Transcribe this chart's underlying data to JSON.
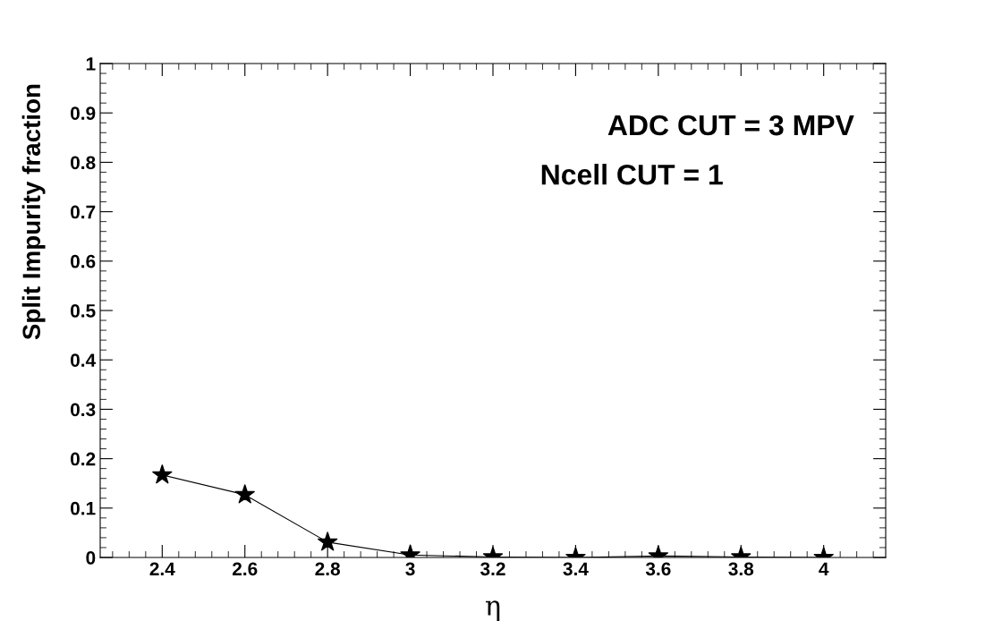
{
  "chart_data": {
    "type": "line",
    "xlabel": "η",
    "ylabel": "Split Impurity fraction",
    "x": [
      2.4,
      2.6,
      2.8,
      3.0,
      3.2,
      3.4,
      3.6,
      3.8,
      4.0
    ],
    "series": [
      {
        "color": "#000000",
        "values": [
          0.167,
          0.127,
          0.031,
          0.005,
          0.001,
          0.0,
          0.003,
          0.001,
          0.0
        ]
      }
    ],
    "xlim": [
      2.25,
      4.15
    ],
    "xticks": [
      2.4,
      2.6,
      2.8,
      {
        "value": 3.0,
        "label": "3"
      },
      3.2,
      3.4,
      3.6,
      3.8,
      {
        "value": 4.0,
        "label": "4"
      }
    ],
    "ylim": [
      0,
      1
    ],
    "yticks": [
      0,
      0.1,
      0.2,
      0.3,
      0.4,
      0.5,
      0.6,
      0.7,
      0.8,
      0.9,
      1
    ],
    "annotations": [
      "ADC CUT = 3 MPV",
      "Ncell CUT = 1"
    ],
    "marker": "star",
    "line_style": "solid",
    "grid": false,
    "legend": false
  }
}
